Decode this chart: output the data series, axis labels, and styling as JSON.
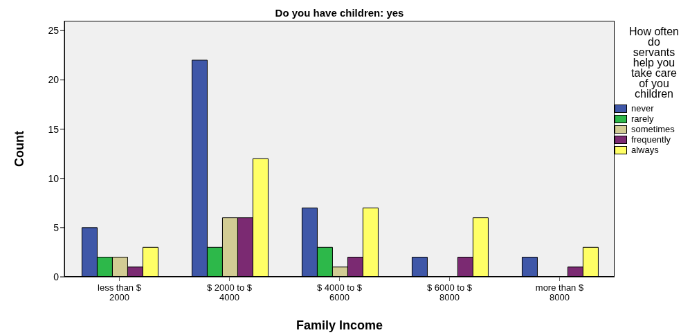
{
  "chart_data": {
    "type": "bar",
    "title": "Do you have children: yes",
    "xlabel": "Family Income",
    "ylabel": "Count",
    "legend_title": "How often do servants help you take care of you children",
    "categories": [
      "less than $ 2000",
      "$ 2000 to $ 4000",
      "$ 4000 to $ 6000",
      "$ 6000 to $ 8000",
      "more than $ 8000"
    ],
    "series": [
      {
        "name": "never",
        "color": "#3f57a8",
        "values": [
          5,
          22,
          7,
          2,
          2
        ]
      },
      {
        "name": "rarely",
        "color": "#2db84a",
        "values": [
          2,
          3,
          3,
          0,
          0
        ]
      },
      {
        "name": "sometimes",
        "color": "#d2cc94",
        "values": [
          2,
          6,
          1,
          0,
          0
        ]
      },
      {
        "name": "frequently",
        "color": "#7b2a72",
        "values": [
          1,
          6,
          2,
          2,
          1
        ]
      },
      {
        "name": "always",
        "color": "#ffff66",
        "values": [
          3,
          12,
          7,
          6,
          3
        ]
      }
    ],
    "ylim": [
      0,
      26
    ],
    "yticks": [
      0,
      5,
      10,
      15,
      20,
      25
    ],
    "legend": "right"
  }
}
